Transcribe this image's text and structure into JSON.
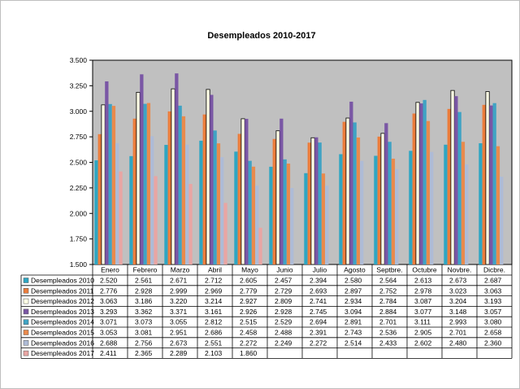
{
  "chart_data": {
    "type": "bar",
    "title": "Desempleados 2010-2017",
    "xlabel": "",
    "ylabel": "",
    "ylim": [
      1500,
      3500
    ],
    "yticks": [
      "1.500",
      "1.750",
      "2.000",
      "2.250",
      "2.500",
      "2.750",
      "3.000",
      "3.250",
      "3.500"
    ],
    "ytick_values": [
      1500,
      1750,
      2000,
      2250,
      2500,
      2750,
      3000,
      3250,
      3500
    ],
    "grid": false,
    "legend": "data-table-below",
    "categories": [
      "Enero",
      "Febrero",
      "Marzo",
      "Abril",
      "Mayo",
      "Junio",
      "Julio",
      "Agosto",
      "Septbre.",
      "Octubre",
      "Novbre.",
      "Dicbre."
    ],
    "series": [
      {
        "name": "Desempleados 2010",
        "color": "#2FA6C2",
        "values": [
          2520,
          2561,
          2671,
          2712,
          2605,
          2457,
          2394,
          2580,
          2564,
          2613,
          2673,
          2687
        ],
        "labels": [
          "2.520",
          "2.561",
          "2.671",
          "2.712",
          "2.605",
          "2.457",
          "2.394",
          "2.580",
          "2.564",
          "2.613",
          "2.673",
          "2.687"
        ]
      },
      {
        "name": "Desempleados 2011",
        "color": "#EB7D3C",
        "values": [
          2776,
          2928,
          2999,
          2969,
          2779,
          2729,
          2693,
          2897,
          2752,
          2978,
          3023,
          3063
        ],
        "labels": [
          "2.776",
          "2.928",
          "2.999",
          "2.969",
          "2.779",
          "2.729",
          "2.693",
          "2.897",
          "2.752",
          "2.978",
          "3.023",
          "3.063"
        ]
      },
      {
        "name": "Desempleados 2012",
        "color": "#FFFFE6",
        "values": [
          3063,
          3186,
          3220,
          3214,
          2927,
          2809,
          2741,
          2934,
          2784,
          3087,
          3204,
          3193
        ],
        "labels": [
          "3.063",
          "3.186",
          "3.220",
          "3.214",
          "2.927",
          "2.809",
          "2.741",
          "2.934",
          "2.784",
          "3.087",
          "3.204",
          "3.193"
        ]
      },
      {
        "name": "Desempleados 2013",
        "color": "#7A57A5",
        "values": [
          3293,
          3362,
          3371,
          3161,
          2926,
          2928,
          2745,
          3094,
          2884,
          3077,
          3148,
          3057
        ],
        "labels": [
          "3.293",
          "3.362",
          "3.371",
          "3.161",
          "2.926",
          "2.928",
          "2.745",
          "3.094",
          "2.884",
          "3.077",
          "3.148",
          "3.057"
        ]
      },
      {
        "name": "Desempleados 2014",
        "color": "#3FA3C4",
        "values": [
          3071,
          3073,
          3055,
          2812,
          2515,
          2529,
          2694,
          2891,
          2701,
          3111,
          2993,
          3080
        ],
        "labels": [
          "3.071",
          "3.073",
          "3.055",
          "2.812",
          "2.515",
          "2.529",
          "2.694",
          "2.891",
          "2.701",
          "3.111",
          "2.993",
          "3.080"
        ]
      },
      {
        "name": "Desempleados 2015",
        "color": "#E98A4C",
        "values": [
          3053,
          3081,
          2951,
          2686,
          2458,
          2488,
          2391,
          2743,
          2536,
          2905,
          2701,
          2658
        ],
        "labels": [
          "3.053",
          "3.081",
          "2.951",
          "2.686",
          "2.458",
          "2.488",
          "2.391",
          "2.743",
          "2.536",
          "2.905",
          "2.701",
          "2.658"
        ]
      },
      {
        "name": "Desempleados 2016",
        "color": "#AEBBD6",
        "values": [
          2688,
          2756,
          2673,
          2551,
          2272,
          2249,
          2272,
          2514,
          2433,
          2602,
          2480,
          2360
        ],
        "labels": [
          "2.688",
          "2.756",
          "2.673",
          "2.551",
          "2.272",
          "2.249",
          "2.272",
          "2.514",
          "2.433",
          "2.602",
          "2.480",
          "2.360"
        ]
      },
      {
        "name": "Desempleados 2017",
        "color": "#E9A5A3",
        "values": [
          2411,
          2365,
          2289,
          2103,
          1860,
          null,
          null,
          null,
          null,
          null,
          null,
          null
        ],
        "labels": [
          "2.411",
          "2.365",
          "2.289",
          "2.103",
          "1.860",
          "",
          "",
          "",
          "",
          "",
          "",
          ""
        ]
      }
    ]
  },
  "colors": {
    "plot_background": "#C0C0C0",
    "border": "#000000"
  }
}
